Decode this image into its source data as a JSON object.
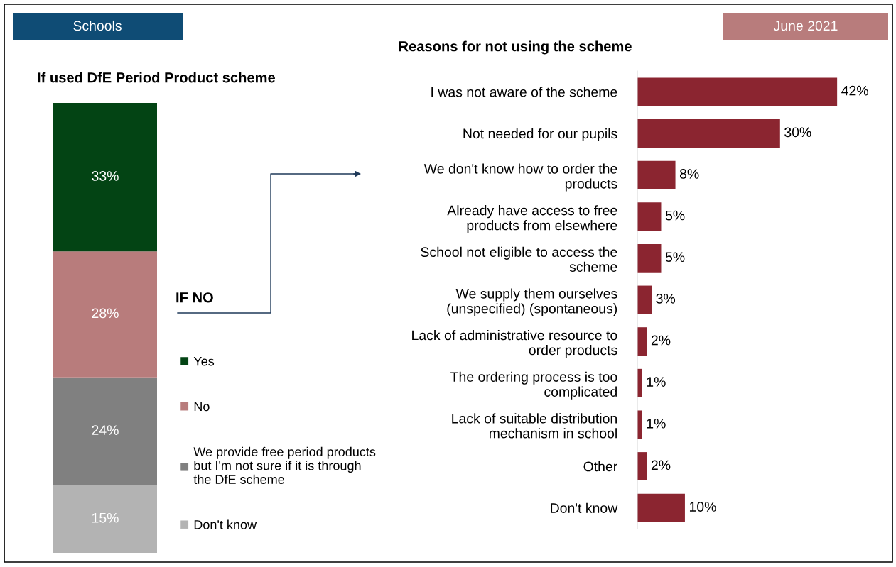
{
  "chart_data": [
    {
      "type": "bar",
      "stacked": true,
      "title": "If used DfE Period Product scheme",
      "categories": [
        null
      ],
      "legend": "right",
      "series": [
        {
          "name": "Don't know",
          "color": "#b3b3b3",
          "values": [
            15
          ],
          "value_labels": [
            "15%"
          ]
        },
        {
          "name": "We provide free period products\nbut I'm not sure if it is through\nthe DfE scheme",
          "color": "#808080",
          "values": [
            24
          ],
          "value_labels": [
            "24%"
          ]
        },
        {
          "name": "No",
          "color": "#b87c7c",
          "values": [
            28
          ],
          "value_labels": [
            "28%"
          ]
        },
        {
          "name": "Yes",
          "color": "#034414",
          "values": [
            33
          ],
          "value_labels": [
            "33%"
          ]
        }
      ],
      "annotations": [
        "Schools",
        "IF NO"
      ]
    },
    {
      "type": "bar",
      "orientation": "horizontal",
      "title": "Reasons for not using the scheme",
      "color": "#8b2530",
      "categories": [
        "I was not aware of the scheme",
        "Not needed for our pupils",
        "We don't know how to order the\nproducts",
        "Already have access to free\nproducts from elsewhere",
        "School not eligible to access the\nscheme",
        "We supply them ourselves\n(unspecified) (spontaneous)",
        "Lack of administrative resource to\norder products",
        "The ordering process is too\ncomplicated",
        "Lack of suitable distribution\nmechanism in school",
        "Other",
        "Don't know"
      ],
      "values": [
        42,
        30,
        8,
        5,
        5,
        3,
        2,
        1,
        1,
        2,
        10
      ],
      "value_labels": [
        "42%",
        "30%",
        "8%",
        "5%",
        "5%",
        "3%",
        "2%",
        "1%",
        "1%",
        "2%",
        "10%"
      ],
      "annotations": [
        "June 2021"
      ]
    }
  ]
}
